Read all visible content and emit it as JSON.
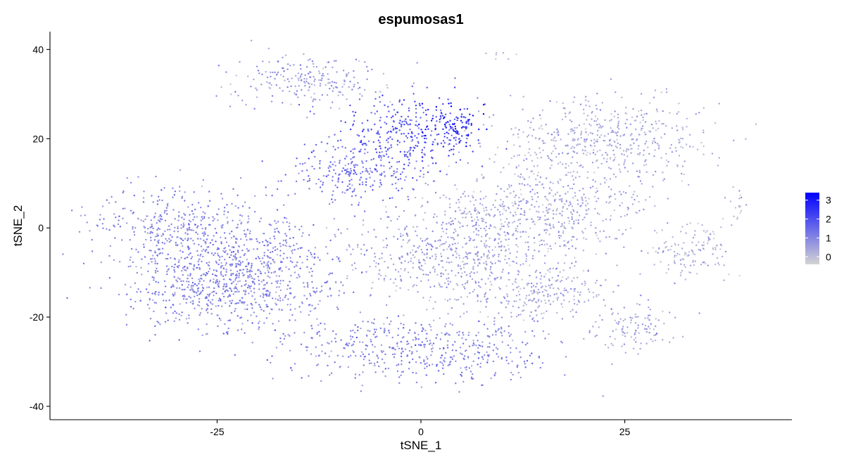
{
  "chart_data": {
    "type": "scatter",
    "title": "espumosas1",
    "xlabel": "tSNE_1",
    "ylabel": "tSNE_2",
    "xlim": [
      -45.5,
      45.5
    ],
    "ylim": [
      -43,
      44
    ],
    "xticks": [
      -25,
      0,
      25
    ],
    "xtick_labels": [
      "-25",
      "0",
      "25"
    ],
    "yticks": [
      -40,
      -20,
      0,
      20,
      40
    ],
    "ytick_labels": [
      "-40",
      "-20",
      "0",
      "20",
      "40"
    ],
    "grid": false,
    "colorbar": {
      "position": "right",
      "range": [
        -0.4,
        3.4
      ],
      "ticks": [
        0,
        1,
        2,
        3
      ],
      "tick_labels": [
        "0",
        "1",
        "2",
        "3"
      ],
      "low_color": "#d3d3d3",
      "high_color": "#0000ff"
    },
    "clusters": [
      {
        "center": [
          -2,
          21
        ],
        "spread": [
          6,
          6
        ],
        "expression": 1.8
      },
      {
        "center": [
          -14,
          33
        ],
        "spread": [
          6,
          4
        ],
        "expression": 0.6
      },
      {
        "center": [
          -8,
          12
        ],
        "spread": [
          6,
          4
        ],
        "expression": 1.4
      },
      {
        "center": [
          4,
          23
        ],
        "spread": [
          2.5,
          4
        ],
        "expression": 3.0
      },
      {
        "center": [
          -30,
          0
        ],
        "spread": [
          7,
          6
        ],
        "expression": 1.0
      },
      {
        "center": [
          -20,
          -10
        ],
        "spread": [
          8,
          9
        ],
        "expression": 1.0
      },
      {
        "center": [
          -28,
          -14
        ],
        "spread": [
          6,
          5
        ],
        "expression": 1.0
      },
      {
        "center": [
          5,
          -7
        ],
        "spread": [
          9,
          7
        ],
        "expression": 0.5
      },
      {
        "center": [
          14,
          4
        ],
        "spread": [
          9,
          7
        ],
        "expression": 0.4
      },
      {
        "center": [
          22,
          20
        ],
        "spread": [
          9,
          6
        ],
        "expression": 0.35
      },
      {
        "center": [
          15,
          -15
        ],
        "spread": [
          5,
          4
        ],
        "expression": 0.35
      },
      {
        "center": [
          0,
          -27
        ],
        "spread": [
          11,
          5
        ],
        "expression": 1.0
      },
      {
        "center": [
          33,
          -5
        ],
        "spread": [
          3.5,
          4
        ],
        "expression": 0.2
      },
      {
        "center": [
          26,
          -22
        ],
        "spread": [
          3.5,
          3.5
        ],
        "expression": 0.5
      },
      {
        "center": [
          39,
          5
        ],
        "spread": [
          0.8,
          2.5
        ],
        "expression": 0.3
      },
      {
        "center": [
          9.5,
          38.5
        ],
        "spread": [
          1.5,
          0.5
        ],
        "expression": 0.2
      }
    ]
  }
}
